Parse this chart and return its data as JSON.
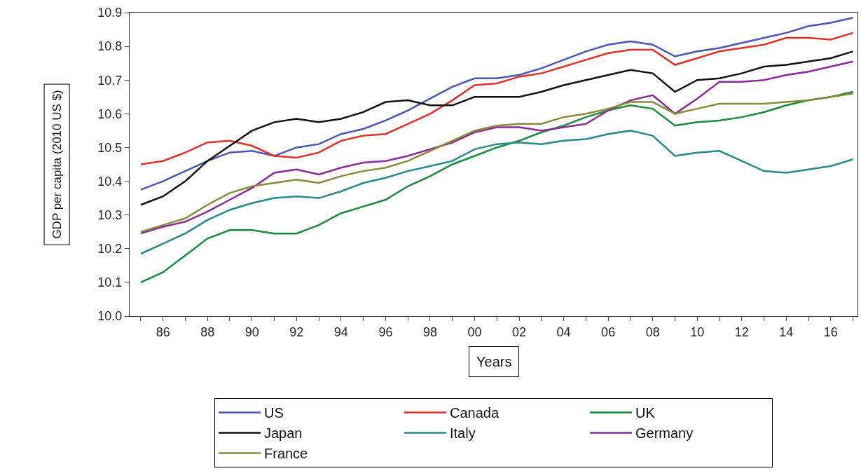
{
  "chart_data": {
    "type": "line",
    "xlabel": "Years",
    "ylabel": "GDP per capita (2010 US $)",
    "x": [
      1985,
      1986,
      1987,
      1988,
      1989,
      1990,
      1991,
      1992,
      1993,
      1994,
      1995,
      1996,
      1997,
      1998,
      1999,
      2000,
      2001,
      2002,
      2003,
      2004,
      2005,
      2006,
      2007,
      2008,
      2009,
      2010,
      2011,
      2012,
      2013,
      2014,
      2015,
      2016,
      2017
    ],
    "series": [
      {
        "name": "US",
        "color": "#4a55b5",
        "values": [
          10.375,
          10.4,
          10.43,
          10.46,
          10.485,
          10.49,
          10.475,
          10.5,
          10.51,
          10.54,
          10.555,
          10.58,
          10.61,
          10.645,
          10.68,
          10.705,
          10.705,
          10.715,
          10.735,
          10.76,
          10.785,
          10.805,
          10.815,
          10.805,
          10.77,
          10.785,
          10.795,
          10.81,
          10.825,
          10.84,
          10.86,
          10.87,
          10.885
        ]
      },
      {
        "name": "Canada",
        "color": "#e0312a",
        "values": [
          10.45,
          10.46,
          10.485,
          10.515,
          10.52,
          10.505,
          10.475,
          10.47,
          10.485,
          10.52,
          10.535,
          10.54,
          10.57,
          10.6,
          10.64,
          10.685,
          10.69,
          10.71,
          10.72,
          10.74,
          10.76,
          10.78,
          10.79,
          10.79,
          10.745,
          10.765,
          10.785,
          10.795,
          10.805,
          10.825,
          10.825,
          10.82,
          10.84
        ]
      },
      {
        "name": "UK",
        "color": "#1a8a3c",
        "values": [
          10.1,
          10.13,
          10.18,
          10.23,
          10.255,
          10.255,
          10.245,
          10.245,
          10.27,
          10.305,
          10.325,
          10.345,
          10.385,
          10.415,
          10.45,
          10.475,
          10.5,
          10.52,
          10.545,
          10.565,
          10.59,
          10.61,
          10.625,
          10.615,
          10.565,
          10.575,
          10.58,
          10.59,
          10.605,
          10.625,
          10.64,
          10.65,
          10.665
        ]
      },
      {
        "name": "Japan",
        "color": "#111111",
        "values": [
          10.33,
          10.355,
          10.4,
          10.46,
          10.505,
          10.55,
          10.575,
          10.585,
          10.575,
          10.585,
          10.605,
          10.635,
          10.64,
          10.625,
          10.625,
          10.65,
          10.65,
          10.65,
          10.665,
          10.685,
          10.7,
          10.715,
          10.73,
          10.72,
          10.665,
          10.7,
          10.705,
          10.72,
          10.74,
          10.745,
          10.755,
          10.765,
          10.785
        ]
      },
      {
        "name": "Italy",
        "color": "#268a8a",
        "values": [
          10.185,
          10.215,
          10.245,
          10.285,
          10.315,
          10.335,
          10.35,
          10.355,
          10.35,
          10.37,
          10.395,
          10.41,
          10.43,
          10.445,
          10.46,
          10.495,
          10.51,
          10.515,
          10.51,
          10.52,
          10.525,
          10.54,
          10.55,
          10.535,
          10.475,
          10.485,
          10.49,
          10.46,
          10.43,
          10.425,
          10.435,
          10.445,
          10.465
        ]
      },
      {
        "name": "Germany",
        "color": "#8a2a9a",
        "values": [
          10.245,
          10.265,
          10.28,
          10.31,
          10.345,
          10.38,
          10.425,
          10.435,
          10.42,
          10.44,
          10.455,
          10.46,
          10.475,
          10.495,
          10.515,
          10.545,
          10.56,
          10.56,
          10.55,
          10.56,
          10.57,
          10.61,
          10.64,
          10.655,
          10.6,
          10.645,
          10.695,
          10.695,
          10.7,
          10.715,
          10.725,
          10.74,
          10.755
        ]
      },
      {
        "name": "France",
        "color": "#8a8a3a",
        "values": [
          10.25,
          10.27,
          10.29,
          10.33,
          10.365,
          10.385,
          10.395,
          10.405,
          10.395,
          10.415,
          10.43,
          10.44,
          10.46,
          10.49,
          10.52,
          10.55,
          10.565,
          10.57,
          10.57,
          10.59,
          10.6,
          10.615,
          10.635,
          10.635,
          10.6,
          10.615,
          10.63,
          10.63,
          10.63,
          10.635,
          10.64,
          10.65,
          10.66
        ]
      }
    ],
    "xlim": [
      1984.5,
      2017.2
    ],
    "xticks": [
      {
        "value": 1985,
        "label": null
      },
      {
        "value": 1986,
        "label": "86"
      },
      {
        "value": 1987,
        "label": null
      },
      {
        "value": 1988,
        "label": "88"
      },
      {
        "value": 1989,
        "label": null
      },
      {
        "value": 1990,
        "label": "90"
      },
      {
        "value": 1991,
        "label": null
      },
      {
        "value": 1992,
        "label": "92"
      },
      {
        "value": 1993,
        "label": null
      },
      {
        "value": 1994,
        "label": "94"
      },
      {
        "value": 1995,
        "label": null
      },
      {
        "value": 1996,
        "label": "96"
      },
      {
        "value": 1997,
        "label": null
      },
      {
        "value": 1998,
        "label": "98"
      },
      {
        "value": 1999,
        "label": null
      },
      {
        "value": 2000,
        "label": "00"
      },
      {
        "value": 2001,
        "label": null
      },
      {
        "value": 2002,
        "label": "02"
      },
      {
        "value": 2003,
        "label": null
      },
      {
        "value": 2004,
        "label": "04"
      },
      {
        "value": 2005,
        "label": null
      },
      {
        "value": 2006,
        "label": "06"
      },
      {
        "value": 2007,
        "label": null
      },
      {
        "value": 2008,
        "label": "08"
      },
      {
        "value": 2009,
        "label": null
      },
      {
        "value": 2010,
        "label": "10"
      },
      {
        "value": 2011,
        "label": null
      },
      {
        "value": 2012,
        "label": "12"
      },
      {
        "value": 2013,
        "label": null
      },
      {
        "value": 2014,
        "label": "14"
      },
      {
        "value": 2015,
        "label": null
      },
      {
        "value": 2016,
        "label": "16"
      },
      {
        "value": 2017,
        "label": null
      }
    ],
    "ylim": [
      10.0,
      10.9
    ],
    "yticks": [
      {
        "value": 10.0,
        "label": "10.0"
      },
      10.1,
      10.2,
      10.3,
      10.4,
      10.5,
      10.6,
      10.7,
      10.8,
      10.9
    ],
    "legend": "bottom",
    "marker": "none",
    "line_style": "solid"
  }
}
